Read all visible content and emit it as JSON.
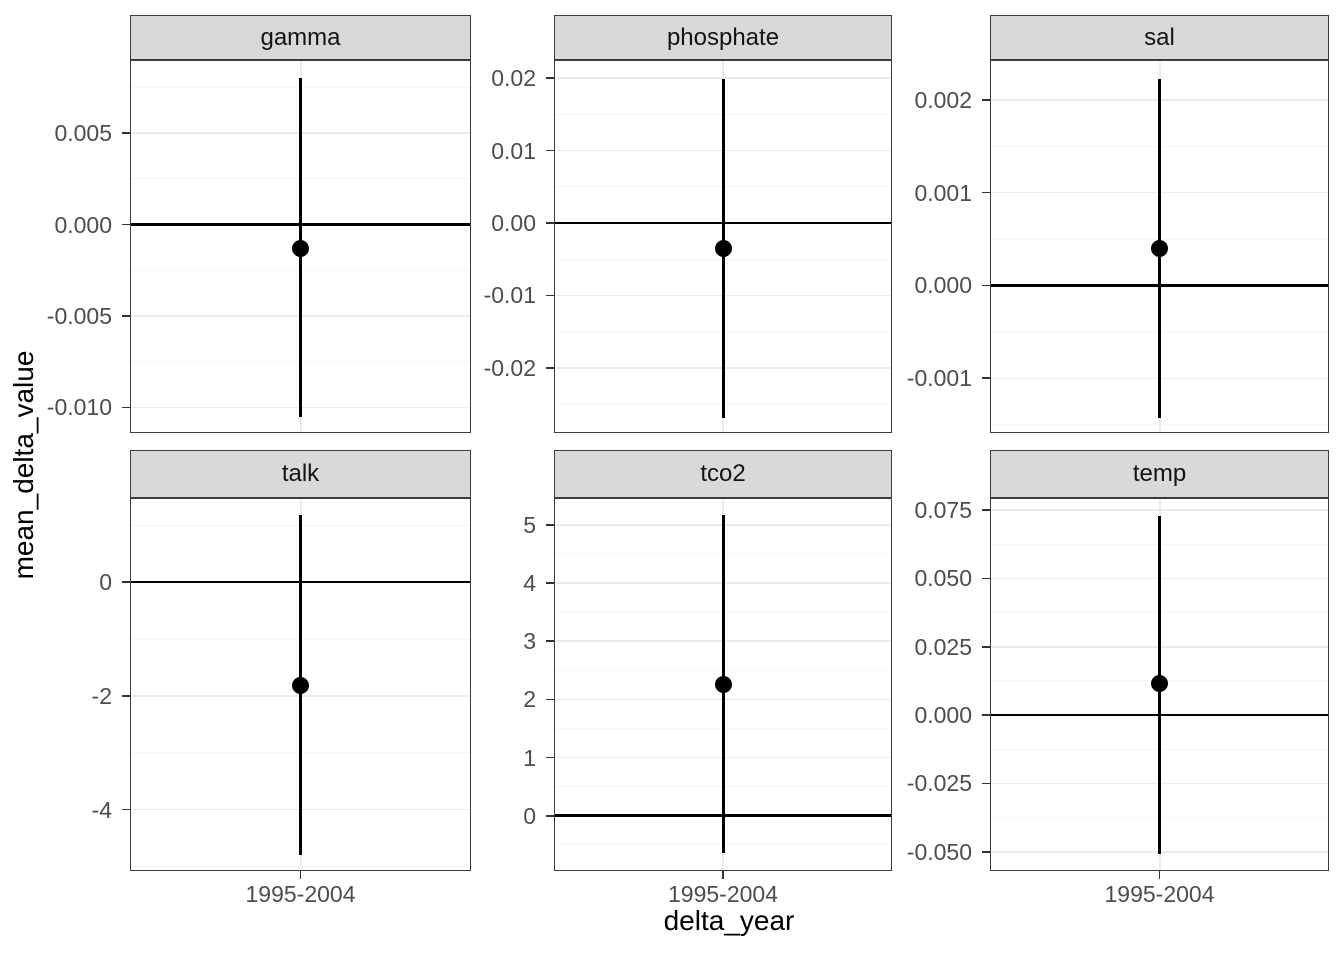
{
  "figure": {
    "y_axis_title": "mean_delta_value",
    "x_axis_title": "delta_year",
    "x_tick_label": "1995-2004"
  },
  "style": {
    "strip_background": "#d9d9d9",
    "strip_border": "#3c3c3c",
    "panel_border": "#3c3c3c",
    "grid_major": "#ebebeb",
    "grid_minor": "#f5f5f5",
    "tick_mark_color": "#333333",
    "tick_label_color": "#4d4d4d",
    "data_color": "#000000",
    "background": "#ffffff"
  },
  "chart_data": {
    "type": "pointrange",
    "facet_layout": "2x3",
    "x_categories": [
      "1995-2004"
    ],
    "xlabel": "delta_year",
    "ylabel": "mean_delta_value",
    "hline_y": 0,
    "grid": "major+minor",
    "panels": [
      {
        "title": "gamma",
        "x": "1995-2004",
        "mean": -0.0013,
        "upper": 0.008,
        "lower": -0.0105,
        "yticks": [
          0.005,
          0,
          -0.005,
          -0.01
        ],
        "ytick_labels": [
          "0.005",
          "0.000",
          "-0.005",
          "-0.010"
        ],
        "ylim": [
          -0.0114,
          0.009
        ]
      },
      {
        "title": "phosphate",
        "x": "1995-2004",
        "mean": -0.0035,
        "upper": 0.0199,
        "lower": -0.0269,
        "yticks": [
          0.02,
          0.01,
          0,
          -0.01,
          -0.02
        ],
        "ytick_labels": [
          "0.02",
          "0.01",
          "0.00",
          "-0.01",
          "-0.02"
        ],
        "ylim": [
          -0.029,
          0.0225
        ]
      },
      {
        "title": "sal",
        "x": "1995-2004",
        "mean": 0.0004,
        "upper": 0.00223,
        "lower": -0.00143,
        "yticks": [
          0.002,
          0.001,
          0,
          -0.001
        ],
        "ytick_labels": [
          "0.002",
          "0.001",
          "0.000",
          "-0.001"
        ],
        "ylim": [
          -0.00159,
          0.00243
        ]
      },
      {
        "title": "talk",
        "x": "1995-2004",
        "mean": -1.81,
        "upper": 1.18,
        "lower": -4.8,
        "yticks": [
          0,
          -2,
          -4
        ],
        "ytick_labels": [
          "0",
          "-2",
          "-4"
        ],
        "ylim": [
          -5.08,
          1.48
        ]
      },
      {
        "title": "tco2",
        "x": "1995-2004",
        "mean": 2.25,
        "upper": 5.17,
        "lower": -0.64,
        "yticks": [
          5,
          4,
          3,
          2,
          1,
          0
        ],
        "ytick_labels": [
          "5",
          "4",
          "3",
          "2",
          "1",
          "0"
        ],
        "ylim": [
          -0.95,
          5.46
        ]
      },
      {
        "title": "temp",
        "x": "1995-2004",
        "mean": 0.0114,
        "upper": 0.0728,
        "lower": -0.0507,
        "yticks": [
          0.075,
          0.05,
          0.025,
          0,
          -0.025,
          -0.05
        ],
        "ytick_labels": [
          "0.075",
          "0.050",
          "0.025",
          "0.000",
          "-0.025",
          "-0.050"
        ],
        "ylim": [
          -0.057,
          0.0794
        ]
      }
    ]
  }
}
